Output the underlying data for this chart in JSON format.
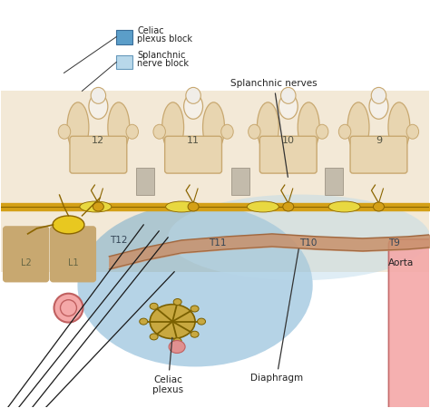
{
  "bg_color": "#ffffff",
  "spine_color": "#e8d5b0",
  "spine_outline": "#c8a870",
  "spine_dark": "#d4b88a",
  "white_matter_color": "#f0ede8",
  "disc_color": "#d8ccc0",
  "nerve_color": "#d4a017",
  "nerve_outline": "#8b6500",
  "aorta_color": "#f4a8a8",
  "aorta_outline": "#c06060",
  "celiac_block_color": "#5b9ec9",
  "celiac_block_alpha": 0.45,
  "splanchnic_block_color": "#b8d8ea",
  "splanchnic_block_alpha": 0.45,
  "needle_color": "#1a1a1a",
  "diaphragm_color": "#c8906a",
  "lumbar_color": "#c8a870",
  "ganglion_color": "#d4a017",
  "celiac_ganglion_color": "#c8b060",
  "legend_celiac_label1": "Celiac",
  "legend_celiac_label2": "plexus block",
  "legend_splanchnic_label1": "Splanchnic",
  "legend_splanchnic_label2": "nerve block",
  "label_splanchnic_nerves": "Splanchnic nerves",
  "label_celiac_plexus": "Celiac\nplexus",
  "label_diaphragm": "Diaphragm",
  "label_aorta": "Aorta",
  "vertebra_numbers": [
    [
      "12",
      108,
      155
    ],
    [
      "11",
      213,
      155
    ],
    [
      "10",
      318,
      155
    ],
    [
      "9",
      418,
      155
    ]
  ],
  "t_labels": [
    [
      "T12",
      130,
      265
    ],
    [
      "T11",
      240,
      268
    ],
    [
      "T10",
      340,
      268
    ],
    [
      "T9",
      435,
      268
    ]
  ],
  "lumbar_labels": [
    [
      "L2",
      28,
      280
    ],
    [
      "L1",
      80,
      280
    ]
  ]
}
